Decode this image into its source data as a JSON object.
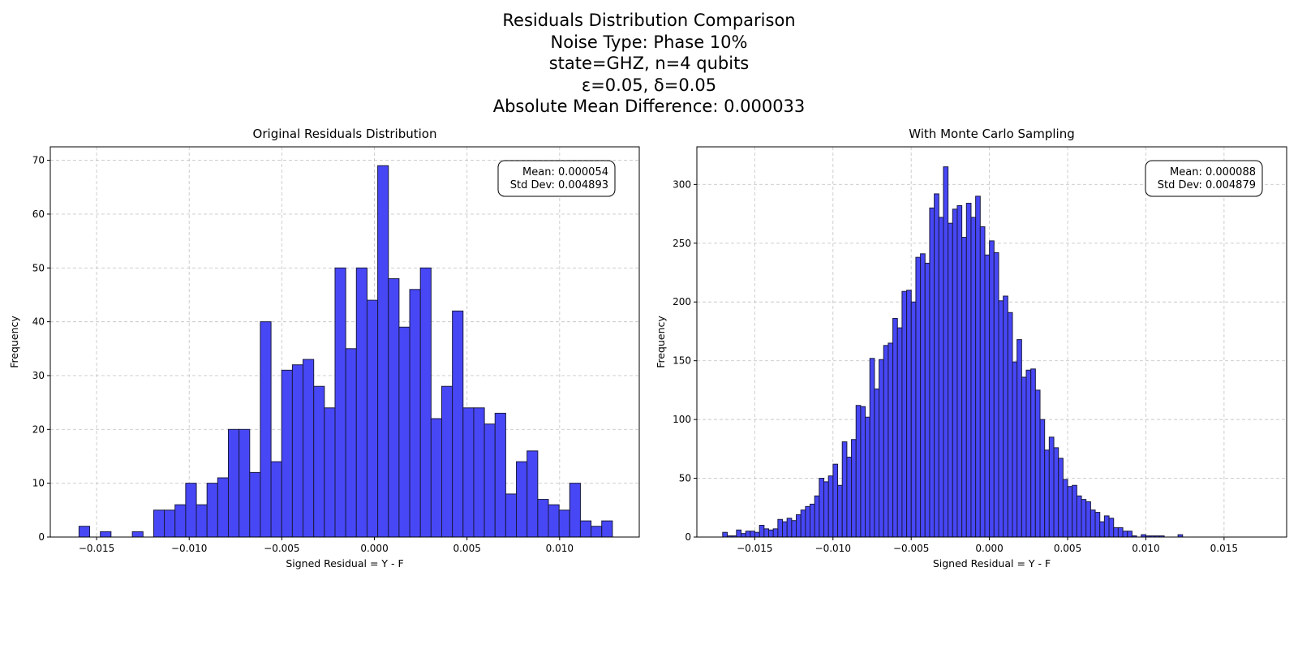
{
  "figure": {
    "suptitle_lines": [
      "Residuals Distribution Comparison",
      "Noise Type: Phase 10%",
      "state=GHZ, n=4 qubits",
      "ε=0.05, δ=0.05",
      "Absolute Mean Difference: 0.000033"
    ]
  },
  "colors": {
    "bar_fill": "#4747f6",
    "bar_edge": "#1a1a40",
    "grid": "#c8c8c8"
  },
  "chart_data": [
    {
      "type": "bar",
      "title": "Original Residuals Distribution",
      "xlabel": "Signed Residual = Y - F",
      "ylabel": "Frequency",
      "xlim": [
        -0.0175,
        0.0143
      ],
      "ylim": [
        0,
        72.5
      ],
      "xticks": [
        -0.015,
        -0.01,
        -0.005,
        0.0,
        0.005,
        0.01
      ],
      "xtick_labels": [
        "−0.015",
        "−0.010",
        "−0.005",
        "0.000",
        "0.005",
        "0.010"
      ],
      "yticks": [
        0,
        10,
        20,
        30,
        40,
        50,
        60,
        70
      ],
      "grid": true,
      "stats_box": {
        "mean": "Mean: 0.000054",
        "std": "Std Dev: 0.004893",
        "placement": "top-right"
      },
      "bin_start": -0.01595,
      "bin_width": 0.000576,
      "values": [
        2,
        0,
        1,
        0,
        0,
        1,
        0,
        5,
        5,
        6,
        10,
        6,
        10,
        11,
        20,
        20,
        12,
        40,
        14,
        31,
        32,
        33,
        28,
        24,
        50,
        35,
        50,
        44,
        69,
        48,
        39,
        46,
        50,
        22,
        28,
        42,
        24,
        24,
        21,
        23,
        8,
        14,
        16,
        7,
        6,
        5,
        10,
        3,
        2,
        3
      ]
    },
    {
      "type": "bar",
      "title": "With Monte Carlo Sampling",
      "xlabel": "Signed Residual = Y - F",
      "ylabel": "Frequency",
      "xlim": [
        -0.0187,
        0.019
      ],
      "ylim": [
        0,
        332
      ],
      "xticks": [
        -0.015,
        -0.01,
        -0.005,
        0.0,
        0.005,
        0.01,
        0.015
      ],
      "xtick_labels": [
        "−0.015",
        "−0.010",
        "−0.005",
        "0.000",
        "0.005",
        "0.010",
        "0.015"
      ],
      "yticks": [
        0,
        50,
        100,
        150,
        200,
        250,
        300
      ],
      "grid": true,
      "stats_box": {
        "mean": "Mean: 0.000088",
        "std": "Std Dev: 0.004879",
        "placement": "top-right"
      },
      "bin_start": -0.01705,
      "bin_width": 0.000294,
      "values": [
        4,
        1,
        1,
        6,
        3,
        5,
        5,
        4,
        10,
        7,
        6,
        7,
        15,
        13,
        16,
        14,
        19,
        23,
        26,
        28,
        35,
        50,
        47,
        52,
        62,
        44,
        81,
        68,
        83,
        112,
        111,
        102,
        152,
        126,
        151,
        163,
        165,
        186,
        178,
        209,
        210,
        200,
        238,
        241,
        233,
        280,
        292,
        272,
        315,
        267,
        279,
        282,
        255,
        284,
        272,
        290,
        264,
        240,
        252,
        242,
        201,
        205,
        191,
        149,
        168,
        136,
        142,
        143,
        125,
        100,
        74,
        85,
        76,
        67,
        49,
        43,
        44,
        35,
        32,
        30,
        23,
        21,
        13,
        18,
        16,
        8,
        8,
        5,
        5,
        1,
        0,
        2,
        1,
        1,
        1,
        1,
        0,
        0,
        0,
        2
      ]
    }
  ]
}
